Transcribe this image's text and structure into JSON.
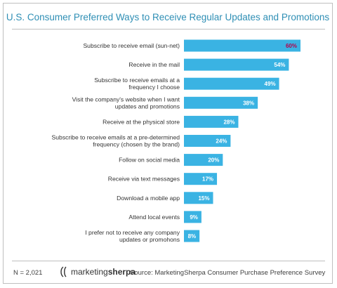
{
  "colors": {
    "bar": "#3ab3e3",
    "label_text": "#ffffff",
    "highlight_text": "#b5004b",
    "title": "#2f8fb5",
    "category_text": "#333333"
  },
  "chart_data": {
    "type": "bar",
    "orientation": "horizontal",
    "title": "U.S. Consumer Preferred Ways to Receive Regular Updates and Promotions",
    "categories": [
      "Subscribe to receive email (sun-net)",
      "Receive in the mail",
      "Subscribe to receive emails at a frequency I choose",
      "Visit the company's website when I want updates and promotions",
      "Receive at the physical store",
      "Subscribe to receive emails at a pre-determined frequency (chosen by the brand)",
      "Follow on social media",
      "Receive via text messages",
      "Download a mobile app",
      "Attend local events",
      "I prefer not to receive any company updates or promohons"
    ],
    "category_lines": [
      [
        "Subscribe to receive email (sun-net)"
      ],
      [
        "Receive in the mail"
      ],
      [
        "Subscribe to receive emails at a",
        "frequency I choose"
      ],
      [
        "Visit the company's website when I want",
        "updates and promotions"
      ],
      [
        "Receive at the physical store"
      ],
      [
        "Subscribe to receive emails at a pre-determined",
        "frequency (chosen by the brand)"
      ],
      [
        "Follow on social media"
      ],
      [
        "Receive via text messages"
      ],
      [
        "Download a mobile app"
      ],
      [
        "Attend local events"
      ],
      [
        "I prefer not to receive any company",
        "updates or promohons"
      ]
    ],
    "values": [
      60,
      54,
      49,
      38,
      28,
      24,
      20,
      17,
      15,
      9,
      8
    ],
    "value_labels": [
      "60%",
      "54%",
      "49%",
      "38%",
      "28%",
      "24%",
      "20%",
      "17%",
      "15%",
      "9%",
      "8%"
    ],
    "highlight_index": 0,
    "xlim": [
      0,
      60
    ],
    "grid": false,
    "legend": "none"
  },
  "footer": {
    "sample_size": "N = 2,021",
    "logo_part1": "marketing",
    "logo_part2": "sherpa",
    "source": "Source: MarketingSherpa Consumer Purchase Preference Survey"
  }
}
